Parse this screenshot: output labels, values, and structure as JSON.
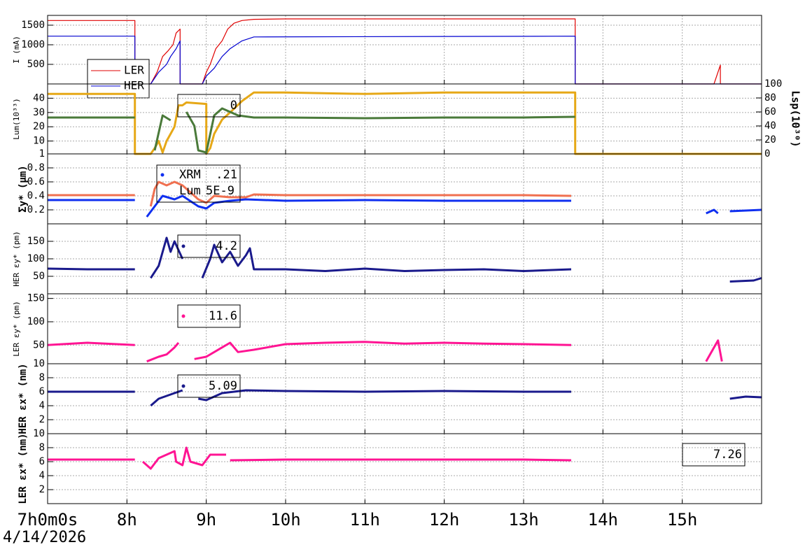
{
  "chart_data": [
    {
      "type": "line",
      "ylabel": "I (mA)",
      "xlim": [
        7,
        16
      ],
      "xticks": [
        8,
        9,
        10,
        11,
        12,
        13,
        14,
        15
      ],
      "ylim": [
        0,
        1750
      ],
      "yticks": [
        500,
        1000,
        1500
      ],
      "grid": true,
      "legend": true,
      "series": [
        {
          "name": "LER",
          "color": "#e00000",
          "x": [
            7,
            8.1,
            8.1,
            8.3,
            8.38,
            8.45,
            8.52,
            8.58,
            8.62,
            8.67,
            8.67,
            8.95,
            9.0,
            9.05,
            9.12,
            9.2,
            9.27,
            9.35,
            9.45,
            9.6,
            10.0,
            13.65,
            13.65,
            15.4,
            15.48,
            15.48,
            16
          ],
          "values": [
            1620,
            1620,
            0,
            0,
            300,
            700,
            850,
            1000,
            1300,
            1400,
            0,
            0,
            300,
            500,
            900,
            1100,
            1400,
            1550,
            1620,
            1650,
            1660,
            1660,
            0,
            0,
            480,
            0,
            0
          ]
        },
        {
          "name": "HER",
          "color": "#0000d0",
          "x": [
            7,
            8.1,
            8.1,
            8.3,
            8.4,
            8.5,
            8.55,
            8.62,
            8.67,
            8.67,
            8.95,
            9.0,
            9.1,
            9.2,
            9.3,
            9.45,
            9.6,
            13.65,
            13.65,
            16
          ],
          "values": [
            1220,
            1220,
            0,
            0,
            300,
            500,
            700,
            900,
            1100,
            0,
            0,
            200,
            400,
            700,
            900,
            1100,
            1200,
            1220,
            0,
            0
          ]
        }
      ]
    },
    {
      "type": "line",
      "ylabel": "Lum(10³³)",
      "y2label": "Lsp(10³⁰)",
      "xlim": [
        7,
        16
      ],
      "xticks": [
        8,
        9,
        10,
        11,
        12,
        13,
        14,
        15
      ],
      "ylim": [
        1,
        50
      ],
      "yticks": [
        1,
        10,
        20,
        30,
        40
      ],
      "y2lim": [
        0,
        100
      ],
      "y2ticks": [
        0,
        20,
        40,
        60,
        80,
        100
      ],
      "grid": true,
      "annotations": [
        "0"
      ],
      "series": [
        {
          "color": "#e6a817",
          "x": [
            7,
            8.1,
            8.1,
            8.3,
            8.35,
            8.4,
            8.45,
            8.5,
            8.55,
            8.6,
            8.65,
            8.7,
            8.75,
            9.0,
            9.0,
            9.05,
            9.1,
            9.2,
            9.3,
            9.45,
            9.6,
            10,
            11,
            12,
            13,
            13.65,
            13.65,
            16
          ],
          "values": [
            43,
            43,
            1,
            1,
            5,
            10,
            2,
            10,
            15,
            20,
            35,
            35,
            37,
            36,
            1,
            5,
            15,
            25,
            30,
            38,
            44,
            44,
            43,
            44,
            44,
            44,
            1,
            1
          ]
        },
        {
          "color": "#4a7a3a",
          "axis": "y2",
          "x": [
            7,
            8.1,
            8.3,
            8.35,
            8.45,
            8.55,
            8.65,
            8.75,
            8.85,
            8.9,
            9.0,
            9.1,
            9.2,
            9.3,
            9.4,
            9.6,
            10,
            11,
            12,
            13,
            13.65
          ],
          "values": [
            52,
            52,
            null,
            5,
            55,
            48,
            null,
            60,
            40,
            5,
            2,
            55,
            65,
            60,
            55,
            52,
            52,
            51,
            52,
            52,
            53
          ]
        }
      ]
    },
    {
      "type": "line",
      "ylabel": "Σy* (μm)",
      "xlim": [
        7,
        16
      ],
      "xticks": [
        8,
        9,
        10,
        11,
        12,
        13,
        14,
        15
      ],
      "ylim": [
        0,
        1
      ],
      "yticks": [
        0.2,
        0.4,
        0.6,
        0.8
      ],
      "grid": true,
      "annotations": [
        "XRM",
        ".21",
        "Lum",
        "5E-9"
      ],
      "series": [
        {
          "color": "#1030f0",
          "x": [
            7,
            8.1,
            8.2,
            8.25,
            8.35,
            8.45,
            8.6,
            8.7,
            8.9,
            9.0,
            9.1,
            9.3,
            9.5,
            10,
            11,
            12,
            13,
            13.6,
            14,
            15.3,
            15.4,
            15.45,
            15.5,
            15.6,
            16
          ],
          "values": [
            0.34,
            0.34,
            null,
            0.1,
            0.25,
            0.4,
            0.35,
            0.4,
            0.25,
            0.22,
            0.3,
            0.33,
            0.35,
            0.33,
            0.34,
            0.33,
            0.33,
            0.33,
            null,
            0.15,
            0.2,
            0.15,
            null,
            0.18,
            0.2
          ]
        },
        {
          "color": "#f07050",
          "x": [
            7,
            8.1,
            8.2,
            8.3,
            8.35,
            8.4,
            8.5,
            8.6,
            8.7,
            8.8,
            8.9,
            9.0,
            9.1,
            9.3,
            9.5,
            9.6,
            10,
            11,
            12,
            13,
            13.6
          ],
          "values": [
            0.41,
            0.41,
            null,
            0.25,
            0.5,
            0.6,
            0.55,
            0.6,
            0.55,
            0.45,
            0.35,
            0.3,
            0.4,
            0.38,
            0.38,
            0.42,
            0.41,
            0.41,
            0.41,
            0.41,
            0.4
          ]
        }
      ]
    },
    {
      "type": "line",
      "ylabel": "HER εy* (pm)",
      "xlim": [
        7,
        16
      ],
      "xticks": [
        8,
        9,
        10,
        11,
        12,
        13,
        14,
        15
      ],
      "ylim": [
        0,
        200
      ],
      "yticks": [
        50,
        100,
        150
      ],
      "grid": true,
      "annotations": [
        "4.2"
      ],
      "series": [
        {
          "color": "#1a1a8c",
          "x": [
            7,
            7.5,
            8.1,
            8.2,
            8.3,
            8.4,
            8.5,
            8.55,
            8.6,
            8.7,
            8.8,
            8.95,
            9.05,
            9.1,
            9.2,
            9.3,
            9.4,
            9.5,
            9.55,
            9.6,
            10,
            10.5,
            11,
            11.5,
            12,
            12.5,
            13,
            13.6,
            14,
            15.6,
            15.9,
            16
          ],
          "values": [
            72,
            70,
            70,
            null,
            45,
            80,
            160,
            120,
            150,
            100,
            null,
            45,
            100,
            140,
            90,
            120,
            80,
            110,
            130,
            70,
            70,
            65,
            72,
            65,
            68,
            70,
            65,
            70,
            null,
            35,
            38,
            45
          ]
        }
      ]
    },
    {
      "type": "line",
      "ylabel": "LER εy* (pm)",
      "xlim": [
        7,
        16
      ],
      "xticks": [
        8,
        9,
        10,
        11,
        12,
        13,
        14,
        15
      ],
      "ylim": [
        10,
        160
      ],
      "yticks": [
        10,
        50,
        100,
        150
      ],
      "grid": true,
      "annotations": [
        "11.6"
      ],
      "series": [
        {
          "color": "#ff1493",
          "x": [
            7,
            7.5,
            8.1,
            8.2,
            8.25,
            8.4,
            8.5,
            8.6,
            8.65,
            8.75,
            8.85,
            9.0,
            9.2,
            9.3,
            9.4,
            9.6,
            10,
            10.5,
            11,
            11.5,
            12,
            12.5,
            13,
            13.6,
            14,
            15.3,
            15.45,
            15.5
          ],
          "values": [
            50,
            55,
            50,
            null,
            15,
            25,
            30,
            45,
            55,
            null,
            20,
            25,
            45,
            55,
            35,
            40,
            52,
            55,
            57,
            53,
            55,
            53,
            52,
            50,
            null,
            15,
            60,
            15
          ]
        }
      ]
    },
    {
      "type": "line",
      "ylabel": "HER εx* (nm)",
      "xlim": [
        7,
        16
      ],
      "xticks": [
        8,
        9,
        10,
        11,
        12,
        13,
        14,
        15
      ],
      "ylim": [
        0,
        10
      ],
      "yticks": [
        2,
        4,
        6,
        8
      ],
      "grid": true,
      "annotations": [
        "5.09"
      ],
      "series": [
        {
          "color": "#1a1a8c",
          "x": [
            7,
            8.1,
            8.2,
            8.3,
            8.4,
            8.6,
            8.7,
            8.8,
            8.9,
            9.0,
            9.2,
            9.5,
            10,
            11,
            12,
            13,
            13.6,
            14,
            15.6,
            15.8,
            16
          ],
          "values": [
            6,
            6,
            null,
            4,
            5,
            5.8,
            6.2,
            null,
            5,
            4.8,
            5.8,
            6.2,
            6.1,
            6,
            6.1,
            6,
            6,
            null,
            5,
            5.3,
            5.2
          ]
        }
      ]
    },
    {
      "type": "line",
      "ylabel": "LER εx* (nm)",
      "xlim": [
        7,
        16
      ],
      "xticks": [
        {
          "value": 7,
          "label": "7h0m0s"
        },
        {
          "value": 8,
          "label": "8h"
        },
        {
          "value": 9,
          "label": "9h"
        },
        {
          "value": 10,
          "label": "10h"
        },
        {
          "value": 11,
          "label": "11h"
        },
        {
          "value": 12,
          "label": "12h"
        },
        {
          "value": 13,
          "label": "13h"
        },
        {
          "value": 14,
          "label": "14h"
        },
        {
          "value": 15,
          "label": "15h"
        }
      ],
      "ylim": [
        0,
        10
      ],
      "yticks": [
        2,
        4,
        6,
        8,
        10
      ],
      "grid": true,
      "annotations": [
        "7.26"
      ],
      "date": "4/14/2026",
      "series": [
        {
          "color": "#ff1493",
          "x": [
            7,
            8.1,
            8.15,
            8.2,
            8.3,
            8.4,
            8.6,
            8.62,
            8.7,
            8.75,
            8.8,
            8.95,
            9.05,
            9.25,
            9.27,
            9.3,
            10,
            11,
            12,
            13,
            13.6
          ],
          "values": [
            6.3,
            6.3,
            null,
            6,
            5,
            6.5,
            7.5,
            6,
            5.5,
            8,
            6,
            5.5,
            7,
            7,
            null,
            6.2,
            6.3,
            6.3,
            6.3,
            6.3,
            6.2
          ]
        }
      ]
    }
  ]
}
